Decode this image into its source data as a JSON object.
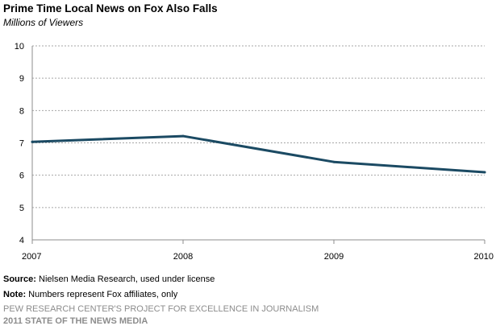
{
  "chart_data": {
    "type": "line",
    "title": "Prime Time Local News  on Fox Also Falls",
    "subtitle": "Millions of Viewers",
    "categories": [
      "2007",
      "2008",
      "2009",
      "2010"
    ],
    "series": [
      {
        "values": [
          7.03,
          7.21,
          6.41,
          6.09
        ]
      }
    ],
    "ylim": [
      4,
      10
    ],
    "yticks": [
      "4",
      "5",
      "6",
      "7",
      "8",
      "9",
      "10"
    ],
    "grid": true,
    "series_color": "#1b4a63"
  },
  "notes": {
    "source_label": "Source:",
    "source_text": " Nielsen Media Research, used under license",
    "note_label": "Note:",
    "note_text": " Numbers represent Fox affiliates, only"
  },
  "footer": {
    "line1": "PEW RESEARCH CENTER'S PROJECT FOR EXCELLENCE IN JOURNALISM",
    "line2": "2011 STATE OF THE NEWS MEDIA"
  }
}
